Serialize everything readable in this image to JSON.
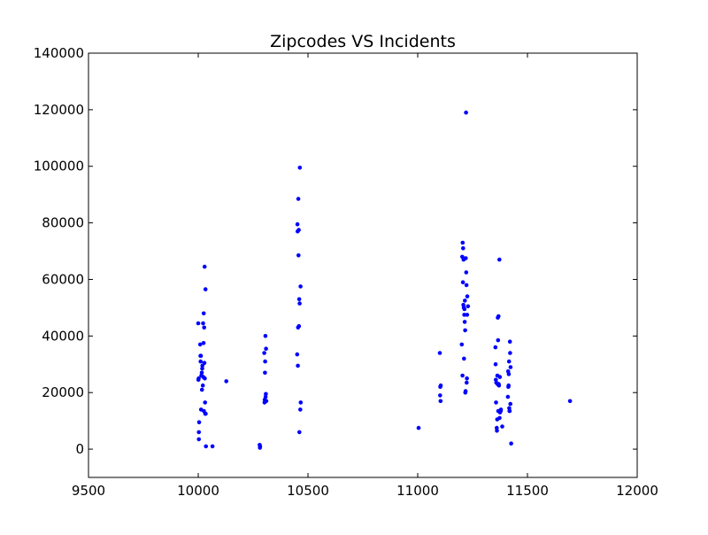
{
  "chart_data": {
    "type": "scatter",
    "title": "Zipcodes VS Incidents",
    "xlabel": "",
    "ylabel": "",
    "xlim": [
      9500,
      12000
    ],
    "ylim": [
      -10000,
      140000
    ],
    "xticks": [
      9500,
      10000,
      10500,
      11000,
      11500,
      12000
    ],
    "yticks": [
      0,
      20000,
      40000,
      60000,
      80000,
      100000,
      120000,
      140000
    ],
    "grid": false,
    "marker_color": "#0000ff",
    "points": [
      [
        10000,
        44500
      ],
      [
        10001,
        24500
      ],
      [
        10002,
        25000
      ],
      [
        10003,
        3500
      ],
      [
        10003,
        6000
      ],
      [
        10004,
        9500
      ],
      [
        10009,
        37000
      ],
      [
        10010,
        33000
      ],
      [
        10011,
        31000
      ],
      [
        10012,
        33000
      ],
      [
        10013,
        14000
      ],
      [
        10014,
        26000
      ],
      [
        10016,
        27000
      ],
      [
        10017,
        21000
      ],
      [
        10018,
        28500
      ],
      [
        10019,
        29500
      ],
      [
        10021,
        22500
      ],
      [
        10022,
        44500
      ],
      [
        10023,
        25500
      ],
      [
        10024,
        37500
      ],
      [
        10025,
        48000
      ],
      [
        10026,
        13500
      ],
      [
        10027,
        43000
      ],
      [
        10028,
        30500
      ],
      [
        10029,
        64500
      ],
      [
        10030,
        25000
      ],
      [
        10031,
        16500
      ],
      [
        10032,
        12500
      ],
      [
        10033,
        56500
      ],
      [
        10034,
        12500
      ],
      [
        10035,
        1000
      ],
      [
        10065,
        1000
      ],
      [
        10128,
        24000
      ],
      [
        10280,
        1500
      ],
      [
        10281,
        500
      ],
      [
        10282,
        1000
      ],
      [
        10301,
        34000
      ],
      [
        10302,
        16500
      ],
      [
        10303,
        17500
      ],
      [
        10304,
        27000
      ],
      [
        10305,
        31000
      ],
      [
        10306,
        40000
      ],
      [
        10307,
        18500
      ],
      [
        10308,
        19500
      ],
      [
        10309,
        35500
      ],
      [
        10310,
        17000
      ],
      [
        10451,
        33500
      ],
      [
        10452,
        79500
      ],
      [
        10453,
        77000
      ],
      [
        10454,
        29500
      ],
      [
        10455,
        43000
      ],
      [
        10456,
        88500
      ],
      [
        10457,
        68500
      ],
      [
        10458,
        77500
      ],
      [
        10459,
        43500
      ],
      [
        10460,
        53000
      ],
      [
        10461,
        6000
      ],
      [
        10462,
        51500
      ],
      [
        10463,
        99500
      ],
      [
        10465,
        14000
      ],
      [
        10466,
        57500
      ],
      [
        10467,
        16500
      ],
      [
        11004,
        7500
      ],
      [
        11101,
        34000
      ],
      [
        11102,
        19000
      ],
      [
        11103,
        22000
      ],
      [
        11104,
        17000
      ],
      [
        11105,
        22500
      ],
      [
        11201,
        37000
      ],
      [
        11203,
        68000
      ],
      [
        11204,
        26000
      ],
      [
        11205,
        73000
      ],
      [
        11206,
        59000
      ],
      [
        11207,
        71000
      ],
      [
        11208,
        51000
      ],
      [
        11209,
        67000
      ],
      [
        11210,
        50000
      ],
      [
        11211,
        32000
      ],
      [
        11212,
        47500
      ],
      [
        11213,
        49500
      ],
      [
        11214,
        45000
      ],
      [
        11215,
        52500
      ],
      [
        11216,
        42000
      ],
      [
        11217,
        20000
      ],
      [
        11218,
        20500
      ],
      [
        11219,
        67500
      ],
      [
        11220,
        119000
      ],
      [
        11221,
        62500
      ],
      [
        11222,
        58000
      ],
      [
        11223,
        23500
      ],
      [
        11224,
        25000
      ],
      [
        11225,
        47500
      ],
      [
        11226,
        54000
      ],
      [
        11229,
        50500
      ],
      [
        11354,
        36000
      ],
      [
        11355,
        30000
      ],
      [
        11356,
        24500
      ],
      [
        11357,
        16500
      ],
      [
        11358,
        23500
      ],
      [
        11360,
        7500
      ],
      [
        11361,
        6500
      ],
      [
        11362,
        10500
      ],
      [
        11363,
        26000
      ],
      [
        11364,
        23000
      ],
      [
        11365,
        46500
      ],
      [
        11366,
        38500
      ],
      [
        11367,
        13500
      ],
      [
        11368,
        47000
      ],
      [
        11369,
        23000
      ],
      [
        11370,
        22500
      ],
      [
        11372,
        67000
      ],
      [
        11373,
        11000
      ],
      [
        11374,
        25500
      ],
      [
        11375,
        13000
      ],
      [
        11377,
        13500
      ],
      [
        11378,
        13500
      ],
      [
        11379,
        14000
      ],
      [
        11385,
        8000
      ],
      [
        11411,
        18500
      ],
      [
        11412,
        27500
      ],
      [
        11413,
        22000
      ],
      [
        11414,
        22500
      ],
      [
        11415,
        26500
      ],
      [
        11416,
        31000
      ],
      [
        11417,
        14500
      ],
      [
        11418,
        13500
      ],
      [
        11419,
        13500
      ],
      [
        11420,
        38000
      ],
      [
        11421,
        34000
      ],
      [
        11422,
        16000
      ],
      [
        11423,
        29000
      ],
      [
        11426,
        2000
      ],
      [
        11694,
        17000
      ]
    ]
  }
}
